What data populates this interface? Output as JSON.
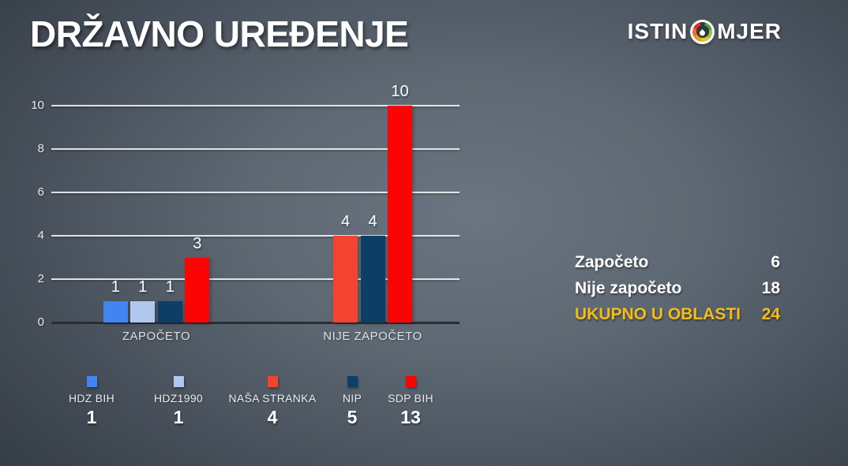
{
  "header": {
    "title": "DRŽAVNO UREĐENJE",
    "logo": {
      "part1": "ISTIN",
      "part2": "MJER"
    }
  },
  "chart_data": {
    "type": "bar",
    "title": "DRŽAVNO UREĐENJE",
    "categories": [
      "ZAPOČETO",
      "NIJE ZAPOČETO"
    ],
    "series": [
      {
        "name": "HDZ BIH",
        "color": "#4385f0",
        "values": [
          1,
          0
        ]
      },
      {
        "name": "HDZ1990",
        "color": "#b0c8ee",
        "values": [
          1,
          0
        ]
      },
      {
        "name": "NAŠA STRANKA",
        "color": "#f4432e",
        "values": [
          0,
          4
        ]
      },
      {
        "name": "NIP",
        "color": "#0e3d66",
        "values": [
          1,
          4
        ]
      },
      {
        "name": "SDP BIH",
        "color": "#fb0404",
        "values": [
          3,
          10
        ]
      }
    ],
    "ylim": [
      0,
      10
    ],
    "yticks": [
      0,
      2,
      4,
      6,
      8,
      10
    ],
    "grid": true,
    "bar_value_labels": true,
    "legend_position": "bottom"
  },
  "summary": {
    "rows": [
      {
        "label": "Započeto",
        "value": "6"
      },
      {
        "label": "Nije započeto",
        "value": "18"
      },
      {
        "label": "UKUPNO U OBLASTI",
        "value": "24"
      }
    ]
  },
  "legend": {
    "items": [
      {
        "name": "HDZ BIH",
        "total": "1",
        "color": "#4385f0"
      },
      {
        "name": "HDZ1990",
        "total": "1",
        "color": "#b0c8ee"
      },
      {
        "name": "NAŠA STRANKA",
        "total": "4",
        "color": "#f4432e"
      },
      {
        "name": "NIP",
        "total": "5",
        "color": "#0e3d66"
      },
      {
        "name": "SDP BIH",
        "total": "13",
        "color": "#fb0404"
      }
    ]
  },
  "colors": {
    "background_center": "#6b7581",
    "background_edge": "#2d3540",
    "gridline": "#eceff2",
    "zero_line": "#232931",
    "accent_yellow": "#f5bd16"
  }
}
